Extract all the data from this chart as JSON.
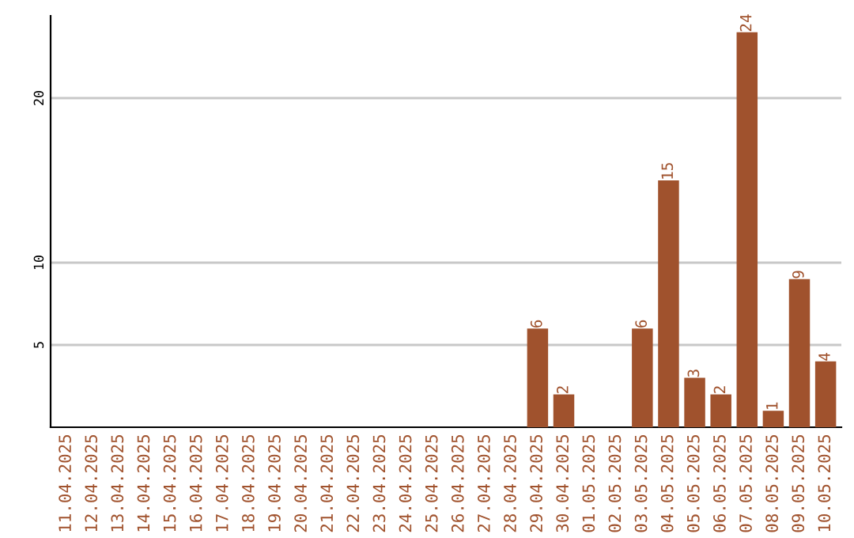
{
  "chart_data": {
    "type": "bar",
    "categories": [
      "11.04.2025",
      "12.04.2025",
      "13.04.2025",
      "14.04.2025",
      "15.04.2025",
      "16.04.2025",
      "17.04.2025",
      "18.04.2025",
      "19.04.2025",
      "20.04.2025",
      "21.04.2025",
      "22.04.2025",
      "23.04.2025",
      "24.04.2025",
      "25.04.2025",
      "26.04.2025",
      "27.04.2025",
      "28.04.2025",
      "29.04.2025",
      "30.04.2025",
      "01.05.2025",
      "02.05.2025",
      "03.05.2025",
      "04.05.2025",
      "05.05.2025",
      "06.05.2025",
      "07.05.2025",
      "08.05.2025",
      "09.05.2025",
      "10.05.2025"
    ],
    "values": [
      0,
      0,
      0,
      0,
      0,
      0,
      0,
      0,
      0,
      0,
      0,
      0,
      0,
      0,
      0,
      0,
      0,
      0,
      6,
      2,
      0,
      0,
      6,
      15,
      3,
      2,
      24,
      1,
      9,
      4
    ],
    "value_labels": [
      null,
      null,
      null,
      null,
      null,
      null,
      null,
      null,
      null,
      null,
      null,
      null,
      null,
      null,
      null,
      null,
      null,
      null,
      "6",
      "2",
      null,
      null,
      "6",
      "15",
      "3",
      "2",
      "24",
      "1",
      "9",
      "4"
    ],
    "color": "#a0522d",
    "ylim": [
      0,
      25
    ],
    "yticks": [
      5,
      10,
      20
    ],
    "grid": "y"
  }
}
